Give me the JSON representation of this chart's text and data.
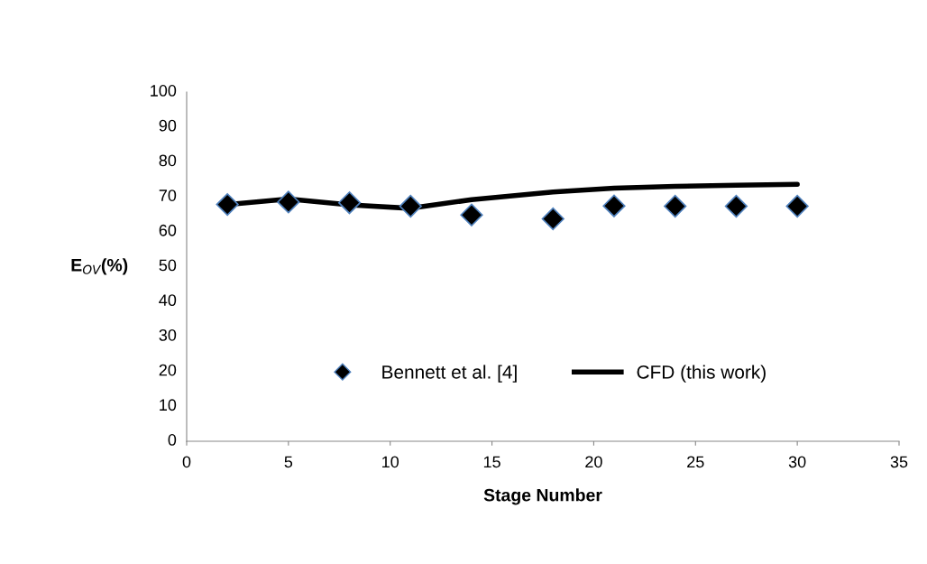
{
  "chart_data": {
    "type": "scatter",
    "xlabel": "Stage Number",
    "ylabel": "E$_{OV}$(%)",
    "x": [
      2,
      5,
      8,
      11,
      14,
      18,
      21,
      24,
      27,
      30
    ],
    "series": [
      {
        "name": "Bennett et al. [4]",
        "color": "#000000",
        "marker": "diamond",
        "values": [
          67.8,
          68.5,
          68.3,
          67.3,
          64.8,
          63.7,
          67.4,
          67.3,
          67.3,
          67.3
        ]
      },
      {
        "name": "CFD (this work)",
        "type": "line",
        "color": "#000000",
        "marker": "none",
        "line_style": "solid",
        "values": [
          67.8,
          69.4,
          67.7,
          66.7,
          69.2,
          71.4,
          72.5,
          73.0,
          73.3,
          73.6
        ]
      }
    ],
    "xlim": [
      0,
      35
    ],
    "xticks": [
      0,
      5,
      10,
      15,
      20,
      25,
      30,
      35
    ],
    "ylim": [
      0,
      100
    ],
    "yticks": [
      0,
      10,
      20,
      30,
      40,
      50,
      60,
      70,
      80,
      90,
      100
    ],
    "grid": false,
    "legend": "bottom"
  }
}
